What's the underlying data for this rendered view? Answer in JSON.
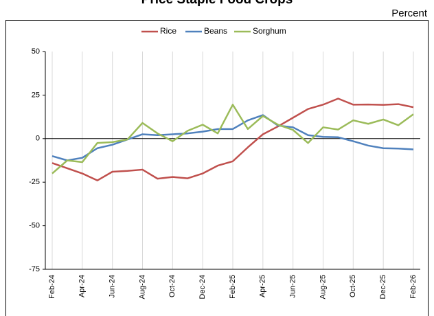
{
  "chart_data": {
    "type": "line",
    "title": "Price Staple Food Crops",
    "y_axis_label": "Percent",
    "categories": [
      "Feb-24",
      null,
      "Apr-24",
      null,
      "Jun-24",
      null,
      "Aug-24",
      null,
      "Oct-24",
      null,
      "Dec-24",
      null,
      "Feb-25",
      null,
      "Apr-25",
      null,
      "Jun-25",
      null,
      "Aug-25",
      null,
      "Oct-25",
      null,
      "Dec-25",
      null,
      "Feb-26"
    ],
    "series": [
      {
        "name": "Rice",
        "color": "#c0504d",
        "values": [
          -14,
          -17,
          -20,
          -24,
          -19,
          -18.5,
          -17.8,
          -23,
          -22,
          -22.8,
          -20,
          -15.5,
          -13,
          -5,
          2.5,
          7,
          12,
          17,
          19.5,
          23,
          19.5,
          19.6,
          19.4,
          19.8,
          18
        ]
      },
      {
        "name": "Beans",
        "color": "#4f81bd",
        "values": [
          -10,
          -12.5,
          -11,
          -5.5,
          -3.5,
          -0.5,
          2.5,
          2,
          2.5,
          3,
          4,
          5.5,
          5.5,
          10.5,
          13.5,
          7.5,
          6.5,
          2,
          1,
          0.8,
          -1.5,
          -4,
          -5.5,
          -5.7,
          -6.2
        ]
      },
      {
        "name": "Sorghum",
        "color": "#9bbb59",
        "values": [
          -20,
          -12.5,
          -13.5,
          -2.5,
          -2,
          -0.5,
          9,
          3,
          -1.5,
          4.5,
          8,
          3,
          19.5,
          5.5,
          13,
          8,
          5,
          -2.5,
          6.5,
          5.2,
          10.5,
          8.5,
          11,
          7.7,
          14
        ]
      }
    ],
    "ylim": [
      -75,
      50
    ],
    "yticks": [
      -75,
      -50,
      -25,
      0,
      25,
      50
    ],
    "grid": true,
    "legend": "top"
  }
}
